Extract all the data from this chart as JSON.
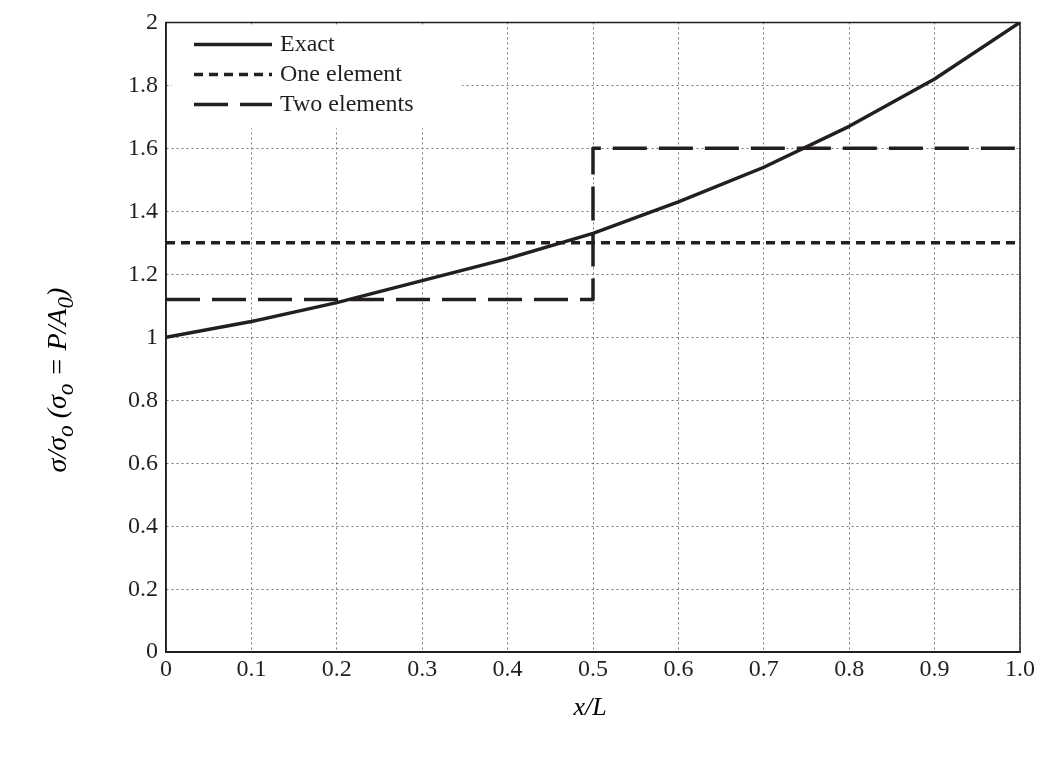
{
  "chart_data": {
    "type": "line",
    "xlabel": "x/L",
    "ylabel": "σ/σ$_{o}$ (σ$_{o}$ = P/A$_{0}$)",
    "xlim": [
      0,
      1
    ],
    "xticks": [
      0,
      0.1,
      0.2,
      0.3,
      0.4,
      0.5,
      0.6,
      0.7,
      0.8,
      0.9,
      {
        "value": 1,
        "label": "1.0"
      }
    ],
    "ylim": [
      0,
      2
    ],
    "yticks": [
      0,
      0.2,
      0.4,
      0.6,
      0.8,
      1,
      1.2,
      1.4,
      1.6,
      1.8,
      2
    ],
    "grid": true,
    "legend": "top left",
    "marker": "none",
    "series": [
      {
        "name": "Exact",
        "line_style": "solid",
        "color": "#231f20",
        "x": [
          0,
          0.1,
          0.2,
          0.3,
          0.4,
          0.5,
          0.6,
          0.7,
          0.8,
          0.9,
          1
        ],
        "values": [
          1,
          1.05,
          1.11,
          1.18,
          1.25,
          1.33,
          1.43,
          1.54,
          1.67,
          1.82,
          2
        ]
      },
      {
        "name": "One element",
        "type": "step",
        "line_style": "dotted",
        "color": "#231f20",
        "x": [
          0,
          1
        ],
        "values": [
          1.3,
          1.3
        ]
      },
      {
        "name": "Two elements",
        "type": "step",
        "line_style": "dashed",
        "color": "#231f20",
        "x": [
          0,
          0.5,
          1
        ],
        "values": [
          1.12,
          1.6,
          1.6
        ]
      }
    ]
  }
}
